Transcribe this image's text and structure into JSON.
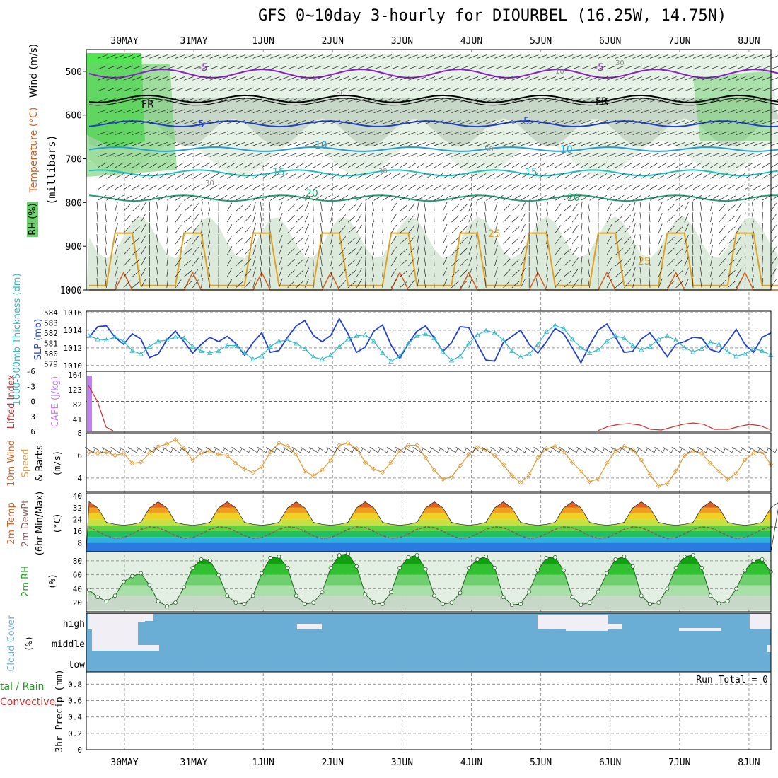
{
  "title": "GFS 0~10day 3-hourly for DIOURBEL (16.25W, 14.75N)",
  "dates": [
    "30MAY",
    "31MAY",
    "1JUN",
    "2JUN",
    "3JUN",
    "4JUN",
    "5JUN",
    "6JUN",
    "7JUN",
    "8JUN"
  ],
  "colors": {
    "grid": "#999999",
    "purple": "#8a1fc8",
    "black": "#000000",
    "blue": "#1f3fd0",
    "lightblue": "#22a0d8",
    "teal": "#20c0c0",
    "green": "#20a070",
    "orange": "#e0a020",
    "darkorange": "#d06020",
    "magenta": "#d0208a",
    "rh_green": "#6ecf6e",
    "rh_grey": "#b8c8b8",
    "slp": "#2040d0",
    "thick": "#30b8c8",
    "li": "#d03030",
    "cape": "#c080f0",
    "wind": "#e0a040",
    "cloud": "#6aaed6",
    "cloud_clear": "#f2eef6"
  },
  "panels": {
    "profile": {
      "y_axis_label": "(millibars)",
      "legend_wind": "Wind (m/s)",
      "legend_temp": "Temperature (°C)",
      "legend_rh": "RH (%)",
      "ticks": [
        "500",
        "600",
        "700",
        "800",
        "900",
        "1000"
      ],
      "isotherm_labels": [
        {
          "text": "-5",
          "color": "purple"
        },
        {
          "text": "FR",
          "color": "black"
        },
        {
          "text": "-5",
          "color": "blue"
        },
        {
          "text": "10",
          "color": "lightblue"
        },
        {
          "text": "15",
          "color": "teal"
        },
        {
          "text": "20",
          "color": "green"
        },
        {
          "text": "25",
          "color": "orange"
        }
      ],
      "rh_labels": [
        "30",
        "50",
        "30",
        "50",
        "10",
        "30"
      ]
    },
    "slp": {
      "left_label": "1000-500mb Thickness (dm)",
      "right_label": "SLP (mb)",
      "thick_ticks": [
        "584",
        "583",
        "582",
        "581",
        "580",
        "579"
      ],
      "slp_ticks": [
        "1016",
        "1014",
        "1012",
        "1010"
      ]
    },
    "li": {
      "left_label": "Lifted Index",
      "right_label": "CAPE (J/kg)",
      "li_ticks": [
        "-6",
        "-3",
        "0",
        "3",
        "6"
      ],
      "cape_ticks": [
        "164",
        "123",
        "82",
        "41"
      ]
    },
    "wind": {
      "label1": "10m Wind",
      "label2": "Speed",
      "label3": "& Barbs",
      "units": "(m/s)",
      "ticks": [
        "8",
        "6",
        "4"
      ]
    },
    "temp": {
      "label1": "2m Temp",
      "label2": "2m DewPt",
      "label3": "(6hr Min/Max)",
      "units": "(°C)",
      "ticks": [
        "40",
        "32",
        "24",
        "16",
        "8"
      ]
    },
    "rh": {
      "label": "2m RH",
      "units": "(%)",
      "ticks": [
        "80",
        "60",
        "40",
        "20"
      ]
    },
    "cloud": {
      "label": "Cloud Cover",
      "units": "(%)",
      "levels": [
        "high",
        "middle",
        "low"
      ]
    },
    "precip": {
      "label1": "tal / Rain",
      "label2": "Convective",
      "label3": "3hr Precip (mm)",
      "ticks": [
        "0.8",
        "0.6",
        "0.4",
        "0.2",
        "0"
      ],
      "run_total": "Run Total = 0"
    }
  },
  "chart_data": [
    {
      "type": "line",
      "title": "1000-500mb Thickness (dm) / SLP (mb)",
      "series": [
        {
          "name": "SLP (mb)",
          "values": [
            1013.2,
            1014.4,
            1014.5,
            1013.2,
            1012.4,
            1013.6,
            1013.0,
            1010.9,
            1011.3,
            1012.9,
            1013.9,
            1012.7,
            1011.4,
            1012.4,
            1013.2,
            1012.7,
            1013.3,
            1012.5,
            1011.2,
            1012.6,
            1013.7,
            1011.5,
            1011.7,
            1013.2,
            1014.5,
            1015.1,
            1013.4,
            1012.7,
            1013.4,
            1015.3,
            1013.6,
            1011.5,
            1012.1,
            1013.9,
            1014.6,
            1012.3,
            1010.8,
            1012.5,
            1013.9,
            1014.5,
            1013.1,
            1011.6,
            1012.6,
            1014.4,
            1014.3,
            1012.4,
            1010.6,
            1010.5,
            1012.6,
            1013.3,
            1014.0,
            1012.4,
            1011.4,
            1012.7,
            1014.2,
            1013.6,
            1012.0,
            1010.3,
            1012.3,
            1014.0,
            1014.7,
            1013.2,
            1011.5,
            1011.6,
            1013.0,
            1013.7,
            1012.4,
            1011.0,
            1012.4,
            1012.7,
            1013.2,
            1013.1,
            1011.8,
            1011.5,
            1012.7,
            1014.1,
            1012.4,
            1011.5,
            1013.2,
            1013.7
          ]
        },
        {
          "name": "1000-500mb Thickness (dm)",
          "values": [
            582.0,
            581.7,
            581.6,
            581.9,
            581.5,
            580.6,
            580.3,
            581.0,
            581.5,
            581.6,
            581.9,
            581.8,
            581.0,
            580.6,
            580.4,
            580.6,
            581.1,
            581.1,
            580.4,
            579.8,
            580.1,
            581.0,
            581.5,
            581.6,
            581.3,
            580.8,
            580.0,
            579.8,
            580.2,
            581.0,
            581.7,
            582.0,
            582.1,
            581.5,
            580.4,
            579.6,
            580.1,
            581.3,
            582.0,
            582.2,
            581.8,
            580.5,
            579.7,
            580.1,
            581.3,
            582.1,
            582.5,
            582.3,
            581.6,
            580.6,
            580.0,
            580.3,
            581.2,
            582.4,
            583.0,
            582.7,
            581.7,
            580.9,
            580.4,
            580.7,
            581.5,
            582.0,
            581.8,
            581.1,
            580.7,
            581.0,
            581.7,
            582.0,
            581.6,
            580.9,
            580.5,
            580.8,
            581.4,
            581.2,
            580.5,
            580.1,
            580.3,
            580.8,
            580.6,
            580.2
          ]
        }
      ],
      "ylim": [
        1009.5,
        1016
      ]
    },
    {
      "type": "line",
      "title": "10m Wind Speed (m/s)",
      "series": [
        {
          "name": "Speed (m/s)",
          "values": [
            6.3,
            6.2,
            6.3,
            6.0,
            6.2,
            5.3,
            5.4,
            6.2,
            6.8,
            7.0,
            7.4,
            6.6,
            5.6,
            6.2,
            6.4,
            6.1,
            6.0,
            5.3,
            4.8,
            4.5,
            5.0,
            6.3,
            7.1,
            6.8,
            6.1,
            4.6,
            4.2,
            4.7,
            5.6,
            6.9,
            7.1,
            6.6,
            5.4,
            4.8,
            4.5,
            5.4,
            6.4,
            6.9,
            6.9,
            5.8,
            4.7,
            3.9,
            4.1,
            5.1,
            6.1,
            6.7,
            6.5,
            6.0,
            5.2,
            4.2,
            3.6,
            4.3,
            5.8,
            6.6,
            6.8,
            6.3,
            5.4,
            4.6,
            3.7,
            3.9,
            5.3,
            6.4,
            6.8,
            6.5,
            5.6,
            4.3,
            3.3,
            3.5,
            4.6,
            6.0,
            6.4,
            6.2,
            5.3,
            4.6,
            3.9,
            4.4,
            5.6,
            6.2,
            6.3,
            5.2
          ]
        }
      ],
      "ylim": [
        2.8,
        8
      ]
    },
    {
      "type": "area",
      "title": "2m RH (%)",
      "series": [
        {
          "name": "2m RH",
          "values": [
            38,
            28,
            22,
            30,
            50,
            58,
            62,
            45,
            22,
            15,
            20,
            42,
            70,
            82,
            80,
            60,
            30,
            20,
            18,
            30,
            62,
            84,
            86,
            70,
            30,
            18,
            20,
            35,
            70,
            88,
            90,
            72,
            32,
            20,
            18,
            35,
            70,
            85,
            88,
            68,
            30,
            18,
            20,
            34,
            70,
            82,
            86,
            70,
            28,
            17,
            18,
            36,
            66,
            84,
            85,
            66,
            28,
            17,
            20,
            36,
            62,
            82,
            86,
            72,
            30,
            18,
            20,
            40,
            70,
            86,
            88,
            70,
            30,
            19,
            22,
            40,
            66,
            80,
            82,
            64
          ]
        }
      ],
      "ylim": [
        10,
        90
      ]
    }
  ]
}
